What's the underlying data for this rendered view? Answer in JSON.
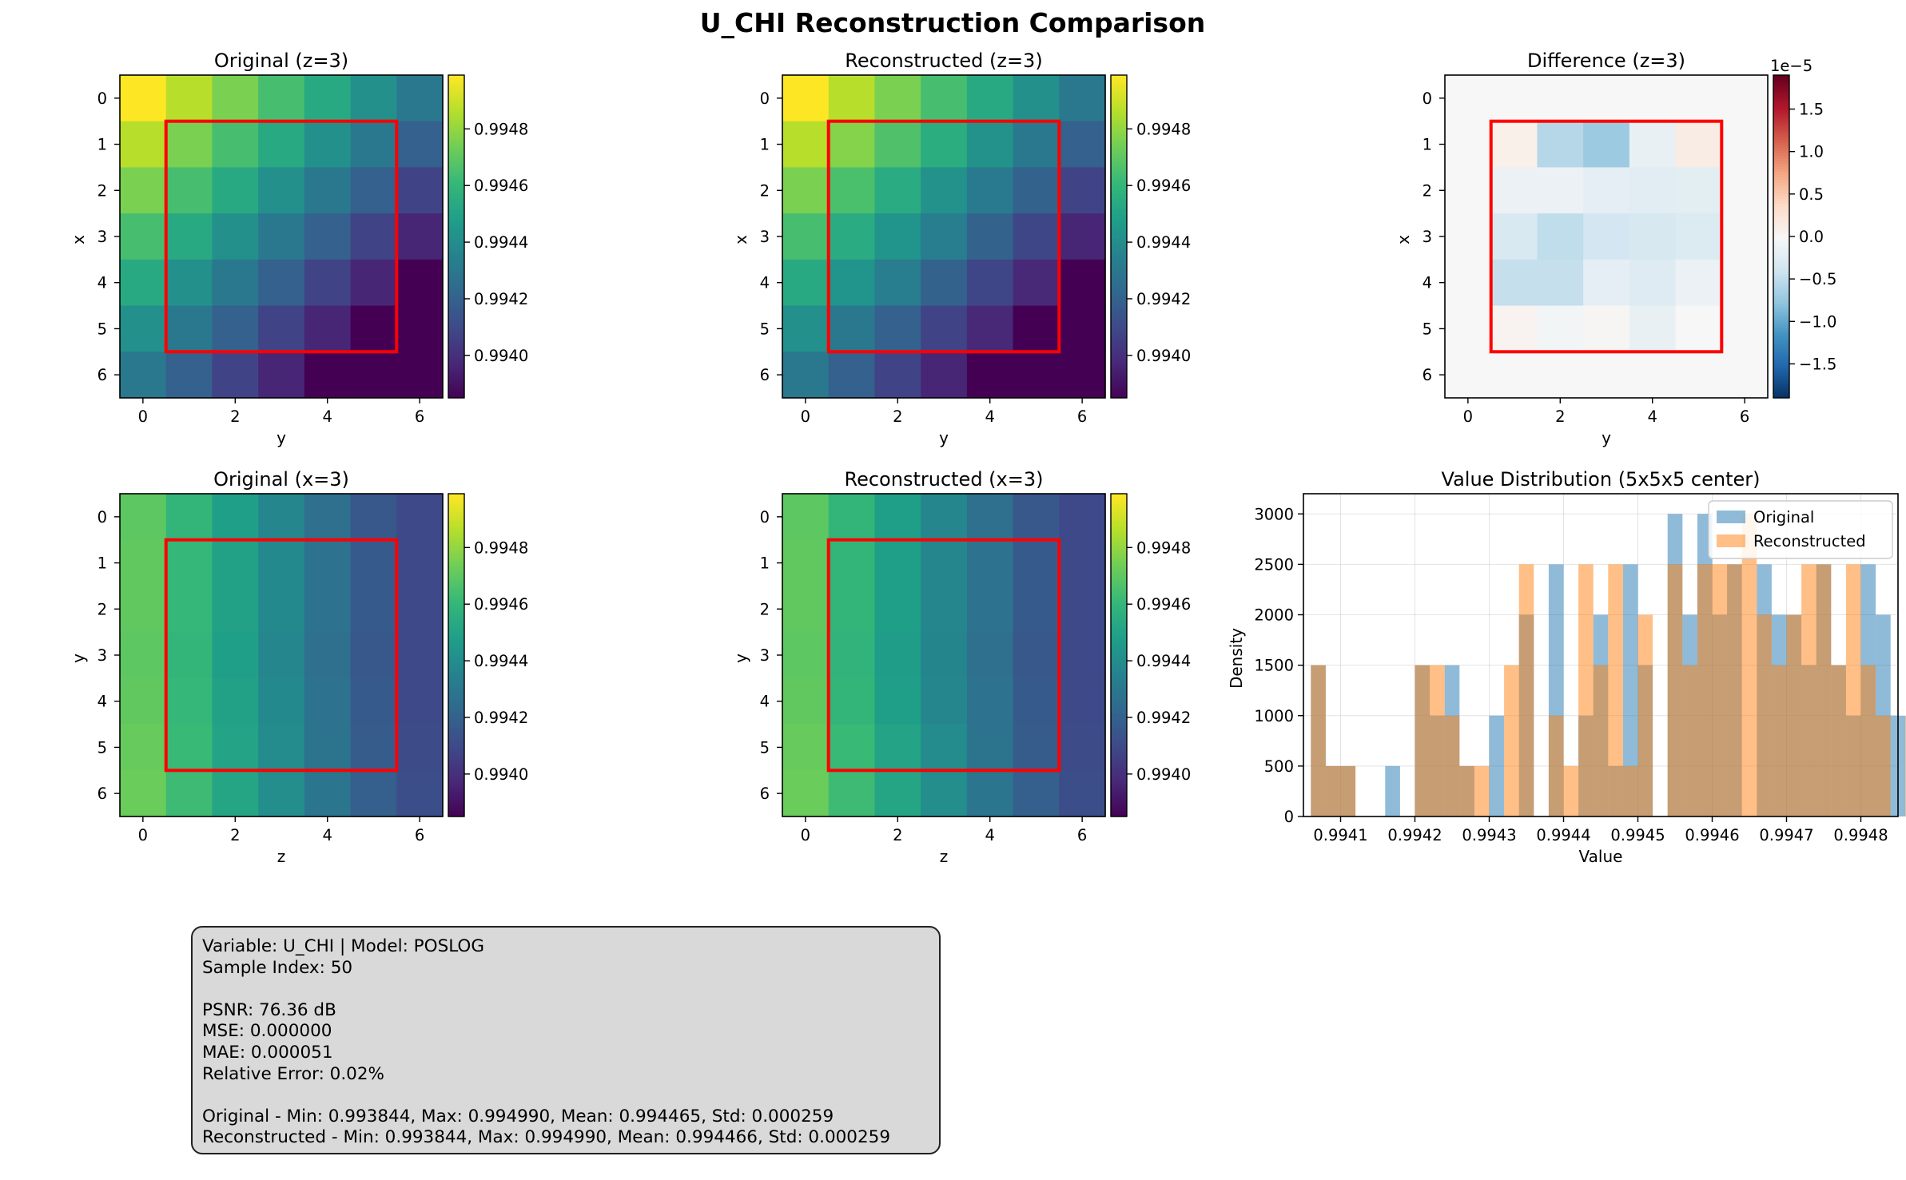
{
  "figure": {
    "title": "U_CHI Reconstruction Comparison"
  },
  "chart_data": [
    {
      "type": "heatmap",
      "title": "Original (z=3)",
      "xlabel": "y",
      "ylabel": "x",
      "x_ticks": [
        "0",
        "2",
        "4",
        "6"
      ],
      "y_ticks": [
        "0",
        "1",
        "2",
        "3",
        "4",
        "5",
        "6"
      ],
      "colormap": "viridis",
      "color_range": [
        0.99385,
        0.99499
      ],
      "colorbar_ticks": [
        "0.9940",
        "0.9942",
        "0.9944",
        "0.9946",
        "0.9948"
      ],
      "colorbar_tick_values": [
        0.994,
        0.9942,
        0.9944,
        0.9946,
        0.9948
      ],
      "highlight_box": {
        "x_range": [
          0.5,
          5.5
        ],
        "y_range": [
          0.5,
          5.5
        ],
        "color": "#ff0000"
      },
      "values": [
        [
          0.99499,
          0.99487,
          0.99476,
          0.99465,
          0.99454,
          0.99442,
          0.99431
        ],
        [
          0.99487,
          0.99476,
          0.99465,
          0.99454,
          0.99442,
          0.99431,
          0.9942
        ],
        [
          0.99476,
          0.99465,
          0.99454,
          0.99442,
          0.99431,
          0.9942,
          0.99408
        ],
        [
          0.99465,
          0.99454,
          0.99442,
          0.99431,
          0.9942,
          0.99408,
          0.99397
        ],
        [
          0.99454,
          0.99442,
          0.99431,
          0.9942,
          0.99408,
          0.99397,
          0.99385
        ],
        [
          0.99442,
          0.99431,
          0.9942,
          0.99408,
          0.99397,
          0.99385,
          0.99374
        ],
        [
          0.99431,
          0.9942,
          0.99408,
          0.99397,
          0.99385,
          0.99374,
          0.9936
        ]
      ]
    },
    {
      "type": "heatmap",
      "title": "Reconstructed (z=3)",
      "xlabel": "y",
      "ylabel": "x",
      "x_ticks": [
        "0",
        "2",
        "4",
        "6"
      ],
      "y_ticks": [
        "0",
        "1",
        "2",
        "3",
        "4",
        "5",
        "6"
      ],
      "colormap": "viridis",
      "color_range": [
        0.99385,
        0.99499
      ],
      "colorbar_ticks": [
        "0.9940",
        "0.9942",
        "0.9944",
        "0.9946",
        "0.9948"
      ],
      "colorbar_tick_values": [
        0.994,
        0.9942,
        0.9944,
        0.9946,
        0.9948
      ],
      "highlight_box": {
        "x_range": [
          0.5,
          5.5
        ],
        "y_range": [
          0.5,
          5.5
        ],
        "color": "#ff0000"
      },
      "values": [
        [
          0.99499,
          0.99487,
          0.99476,
          0.99465,
          0.99454,
          0.99442,
          0.99431
        ],
        [
          0.99487,
          0.99478,
          0.99467,
          0.99456,
          0.99443,
          0.99431,
          0.9942
        ],
        [
          0.99476,
          0.99466,
          0.99455,
          0.99443,
          0.99432,
          0.99421,
          0.99408
        ],
        [
          0.99465,
          0.99455,
          0.99444,
          0.99433,
          0.99421,
          0.99409,
          0.99397
        ],
        [
          0.99454,
          0.99444,
          0.99433,
          0.99421,
          0.99409,
          0.99398,
          0.99385
        ],
        [
          0.99442,
          0.99431,
          0.9942,
          0.99408,
          0.99398,
          0.99385,
          0.99374
        ],
        [
          0.99431,
          0.9942,
          0.99408,
          0.99397,
          0.99385,
          0.99374,
          0.9936
        ]
      ]
    },
    {
      "type": "heatmap",
      "title": "Difference (z=3)",
      "xlabel": "y",
      "ylabel": "x",
      "x_ticks": [
        "0",
        "2",
        "4",
        "6"
      ],
      "y_ticks": [
        "0",
        "1",
        "2",
        "3",
        "4",
        "5",
        "6"
      ],
      "colormap": "RdBu_r",
      "color_range": [
        -1.9,
        1.9
      ],
      "colorbar_ticks": [
        "−1.5",
        "−1.0",
        "−0.5",
        "0.0",
        "0.5",
        "1.0",
        "1.5"
      ],
      "colorbar_tick_values": [
        -1.5,
        -1.0,
        -0.5,
        0.0,
        0.5,
        1.0,
        1.5
      ],
      "colorbar_offset_label": "1e−5",
      "highlight_box": {
        "x_range": [
          0.5,
          5.5
        ],
        "y_range": [
          0.5,
          5.5
        ],
        "color": "#ff0000"
      },
      "values": [
        [
          0,
          0,
          0,
          0,
          0,
          0,
          0
        ],
        [
          0,
          0.1,
          -0.55,
          -0.7,
          -0.15,
          0.15,
          0
        ],
        [
          0,
          -0.12,
          -0.12,
          -0.18,
          -0.22,
          -0.2,
          0
        ],
        [
          0,
          -0.3,
          -0.48,
          -0.35,
          -0.32,
          -0.27,
          0
        ],
        [
          0,
          -0.45,
          -0.45,
          -0.18,
          -0.25,
          -0.12,
          0
        ],
        [
          0,
          0.05,
          -0.05,
          0.03,
          -0.15,
          0.0,
          0
        ],
        [
          0,
          0,
          0,
          0,
          0,
          0,
          0
        ]
      ]
    },
    {
      "type": "heatmap",
      "title": "Original (x=3)",
      "xlabel": "z",
      "ylabel": "y",
      "x_ticks": [
        "0",
        "2",
        "4",
        "6"
      ],
      "y_ticks": [
        "0",
        "1",
        "2",
        "3",
        "4",
        "5",
        "6"
      ],
      "colormap": "viridis",
      "color_range": [
        0.99385,
        0.99499
      ],
      "colorbar_ticks": [
        "0.9940",
        "0.9942",
        "0.9944",
        "0.9946",
        "0.9948"
      ],
      "colorbar_tick_values": [
        0.994,
        0.9942,
        0.9944,
        0.9946,
        0.9948
      ],
      "highlight_box": {
        "x_range": [
          0.5,
          5.5
        ],
        "y_range": [
          0.5,
          5.5
        ],
        "color": "#ff0000"
      },
      "values": [
        [
          0.9947,
          0.9946,
          0.99449,
          0.99438,
          0.99427,
          0.99416,
          0.9941
        ],
        [
          0.99471,
          0.99461,
          0.9945,
          0.99439,
          0.99428,
          0.99417,
          0.9941
        ],
        [
          0.99471,
          0.99461,
          0.9945,
          0.99439,
          0.99428,
          0.99417,
          0.9941
        ],
        [
          0.9947,
          0.9946,
          0.99449,
          0.99438,
          0.99427,
          0.99416,
          0.9941
        ],
        [
          0.99471,
          0.99461,
          0.9945,
          0.99439,
          0.99428,
          0.99417,
          0.9941
        ],
        [
          0.99472,
          0.99462,
          0.99451,
          0.9944,
          0.99429,
          0.99418,
          0.99411
        ],
        [
          0.99473,
          0.99463,
          0.99452,
          0.99441,
          0.9943,
          0.99419,
          0.99412
        ]
      ]
    },
    {
      "type": "heatmap",
      "title": "Reconstructed (x=3)",
      "xlabel": "z",
      "ylabel": "y",
      "x_ticks": [
        "0",
        "2",
        "4",
        "6"
      ],
      "y_ticks": [
        "0",
        "1",
        "2",
        "3",
        "4",
        "5",
        "6"
      ],
      "colormap": "viridis",
      "color_range": [
        0.99385,
        0.99499
      ],
      "colorbar_ticks": [
        "0.9940",
        "0.9942",
        "0.9944",
        "0.9946",
        "0.9948"
      ],
      "colorbar_tick_values": [
        0.994,
        0.9942,
        0.9944,
        0.9946,
        0.9948
      ],
      "highlight_box": {
        "x_range": [
          0.5,
          5.5
        ],
        "y_range": [
          0.5,
          5.5
        ],
        "color": "#ff0000"
      },
      "values": [
        [
          0.9947,
          0.9946,
          0.99449,
          0.99438,
          0.99427,
          0.99416,
          0.9941
        ],
        [
          0.99471,
          0.9946,
          0.99449,
          0.99438,
          0.99428,
          0.99417,
          0.9941
        ],
        [
          0.99471,
          0.9946,
          0.99449,
          0.99438,
          0.99428,
          0.99417,
          0.9941
        ],
        [
          0.9947,
          0.99459,
          0.99448,
          0.99437,
          0.99427,
          0.99416,
          0.9941
        ],
        [
          0.99471,
          0.9946,
          0.99449,
          0.99438,
          0.99428,
          0.99417,
          0.9941
        ],
        [
          0.99472,
          0.99462,
          0.99451,
          0.9944,
          0.99429,
          0.99418,
          0.99411
        ],
        [
          0.99473,
          0.99463,
          0.99452,
          0.99441,
          0.9943,
          0.99419,
          0.99412
        ]
      ]
    },
    {
      "type": "histogram",
      "title": "Value Distribution (5x5x5 center)",
      "xlabel": "Value",
      "ylabel": "Density",
      "xlim": [
        0.99405,
        0.99485
      ],
      "ylim": [
        0,
        3200
      ],
      "x_ticks": [
        "0.9941",
        "0.9942",
        "0.9943",
        "0.9944",
        "0.9945",
        "0.9946",
        "0.9947",
        "0.9948"
      ],
      "x_tick_values": [
        0.9941,
        0.9942,
        0.9943,
        0.9944,
        0.9945,
        0.9946,
        0.9947,
        0.9948
      ],
      "y_ticks": [
        "0",
        "500",
        "1000",
        "1500",
        "2000",
        "2500",
        "3000"
      ],
      "y_tick_values": [
        0,
        500,
        1000,
        1500,
        2000,
        2500,
        3000
      ],
      "grid": true,
      "legend_position": "top-right",
      "series": [
        {
          "name": "Original",
          "color": "#1f77b4",
          "opacity": 0.5,
          "bin_start": 0.99406,
          "bin_width": 2e-05,
          "values": [
            1500,
            500,
            500,
            0,
            0,
            500,
            0,
            1500,
            1000,
            1500,
            500,
            0,
            1000,
            0,
            2000,
            0,
            2500,
            0,
            1000,
            2000,
            500,
            2500,
            1500,
            0,
            3000,
            2000,
            3000,
            2000,
            2500,
            0,
            2500,
            2000,
            2000,
            1500,
            2500,
            1500,
            1000,
            2500,
            2000,
            1000,
            0,
            1500,
            0,
            0,
            2000,
            0,
            1500,
            0,
            1500,
            1000,
            500,
            0
          ]
        },
        {
          "name": "Reconstructed",
          "color": "#ff7f0e",
          "opacity": 0.5,
          "bin_start": 0.99406,
          "bin_width": 2e-05,
          "values": [
            1500,
            500,
            500,
            0,
            0,
            0,
            0,
            1500,
            1500,
            1000,
            500,
            500,
            0,
            1500,
            2500,
            0,
            1000,
            500,
            2500,
            1500,
            2500,
            500,
            2000,
            0,
            2500,
            1500,
            2500,
            2500,
            2500,
            3000,
            2000,
            1500,
            2000,
            2500,
            2500,
            1500,
            2500,
            1500,
            1000,
            0,
            1000,
            1500,
            500,
            0,
            1500,
            0,
            1000,
            0,
            1500,
            500,
            1000,
            500
          ]
        }
      ]
    }
  ],
  "stats_box": {
    "line1": "Variable: U_CHI | Model: POSLOG",
    "line2": "Sample Index: 50",
    "line3": "",
    "line4": "PSNR: 76.36 dB",
    "line5": "MSE: 0.000000",
    "line6": "MAE: 0.000051",
    "line7": "Relative Error: 0.02%",
    "line8": "",
    "line9": "Original - Min: 0.993844, Max: 0.994990, Mean: 0.994465, Std: 0.000259",
    "line10": "Reconstructed - Min: 0.993844, Max: 0.994990, Mean: 0.994466, Std: 0.000259"
  }
}
